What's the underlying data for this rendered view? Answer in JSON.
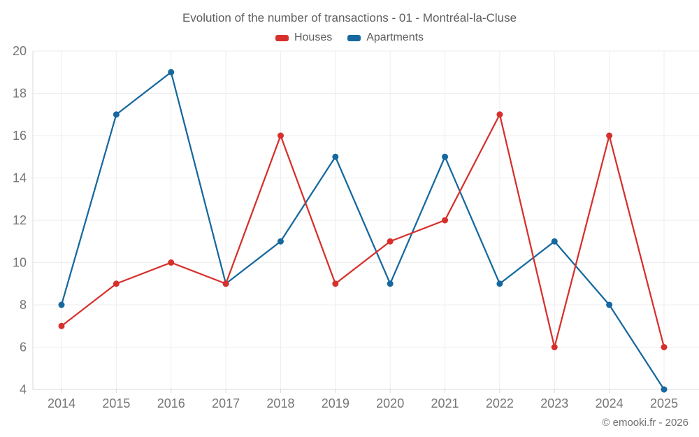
{
  "chart_data": {
    "type": "line",
    "title": "Evolution of the number of transactions - 01 - Montréal-la-Cluse",
    "categories": [
      "2014",
      "2015",
      "2016",
      "2017",
      "2018",
      "2019",
      "2020",
      "2021",
      "2022",
      "2023",
      "2024",
      "2025"
    ],
    "series": [
      {
        "name": "Houses",
        "color": "#d6302c",
        "values": [
          7,
          9,
          10,
          9,
          16,
          9,
          11,
          12,
          17,
          6,
          16,
          6
        ]
      },
      {
        "name": "Apartments",
        "color": "#16689e",
        "values": [
          8,
          17,
          19,
          9,
          11,
          15,
          9,
          15,
          9,
          11,
          8,
          4
        ]
      }
    ],
    "ylim": [
      4,
      20
    ],
    "ytick_step": 2,
    "grid": true,
    "legend_position": "top",
    "xlabel": "",
    "ylabel": ""
  },
  "footer": {
    "copyright": "© emooki.fr - 2026"
  },
  "colors": {
    "background": "#ffffff",
    "gridline": "#ededed",
    "axis_line": "#d9d9d9",
    "tick_text": "#757575",
    "title_text": "#5e5e5e",
    "copyright_text": "#6e6e6e",
    "houses": "#d6302c",
    "apartments": "#16689e"
  }
}
